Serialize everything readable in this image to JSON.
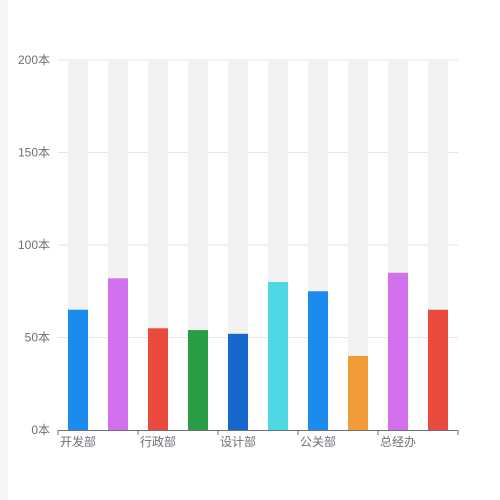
{
  "chart_data": {
    "type": "bar",
    "categories": [
      "开发部",
      "",
      "行政部",
      "",
      "设计部",
      "",
      "公关部",
      "",
      "总经办",
      ""
    ],
    "values": [
      65,
      82,
      55,
      54,
      52,
      80,
      75,
      40,
      85,
      65
    ],
    "bar_colors": [
      "#1a8cf0",
      "#d26fec",
      "#ea4a3d",
      "#2b9e45",
      "#1668cf",
      "#4ed8e3",
      "#1a8cf0",
      "#f19b39",
      "#d26fec",
      "#ea4a3d"
    ],
    "background_bar_color": "#f2f2f2",
    "ylim": [
      0,
      200
    ],
    "y_ticks": [
      "0本",
      "50本",
      "100本",
      "150本",
      "200本"
    ],
    "y_tick_values": [
      0,
      50,
      100,
      150,
      200
    ],
    "grid": true
  }
}
